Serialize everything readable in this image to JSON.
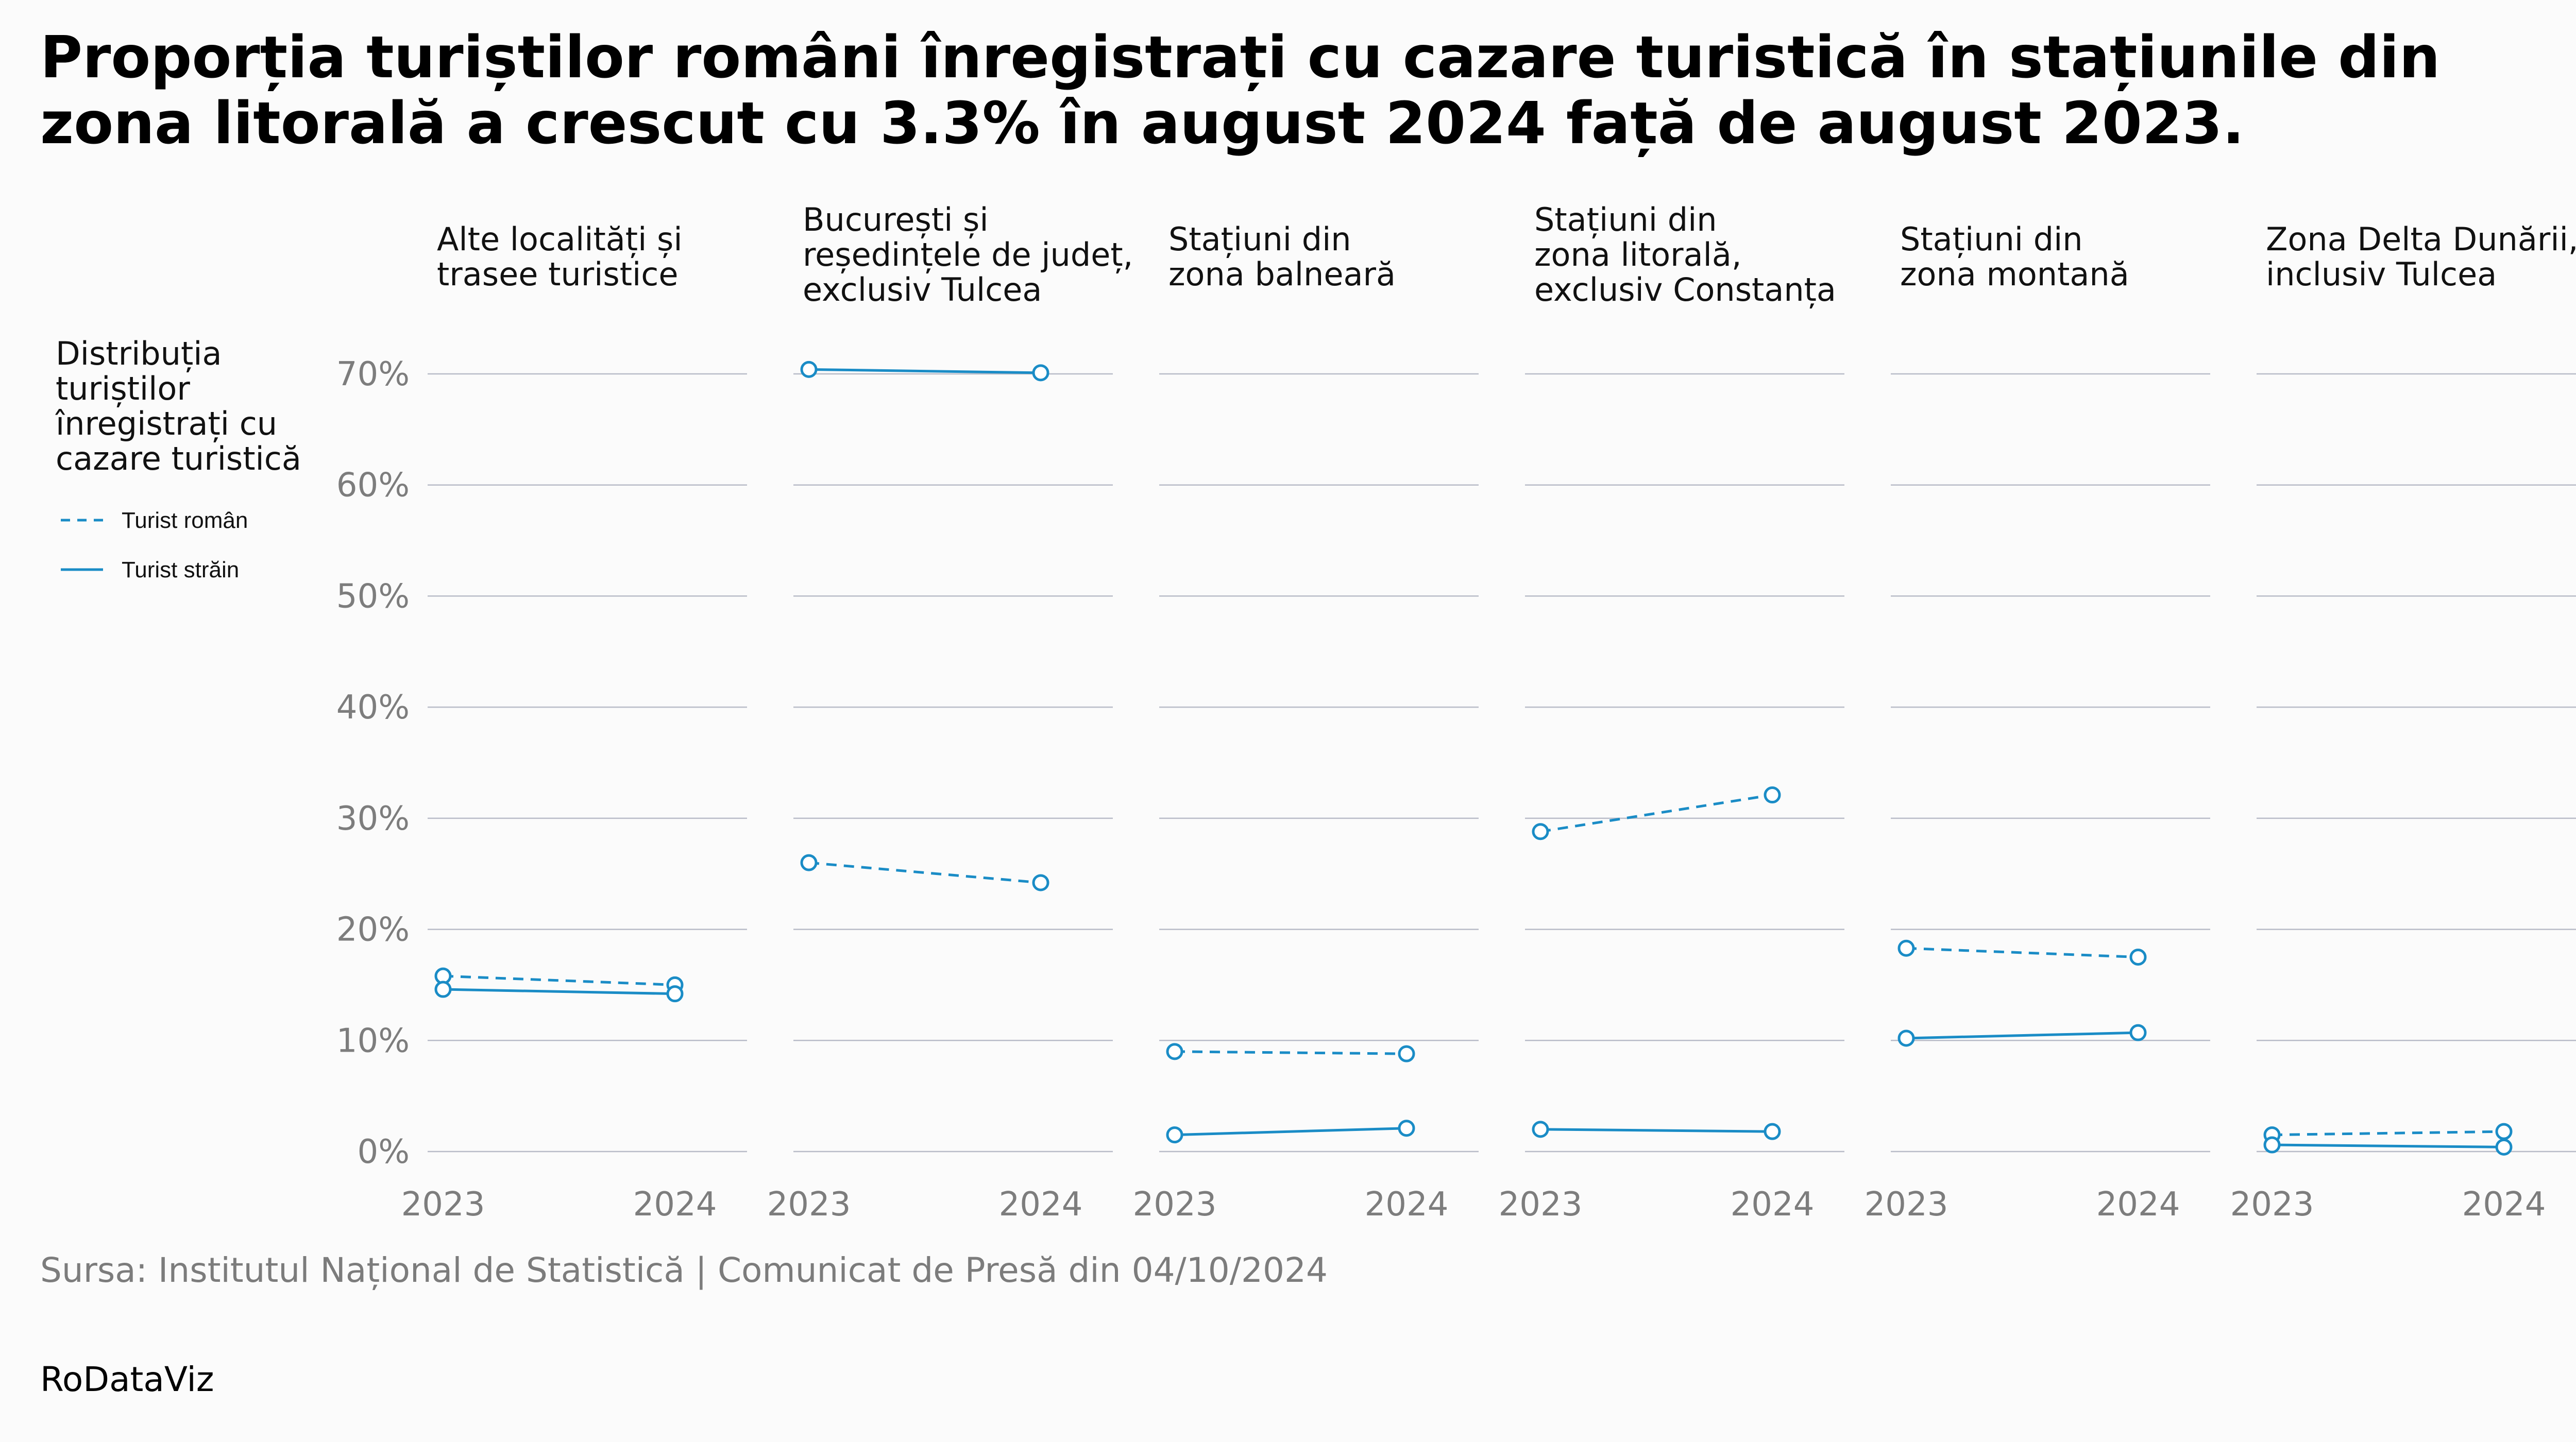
{
  "title": "Proporția turiștilor români înregistrați cu cazare turistică în stațiunile din zona litorală a crescut cu 3.3% în august 2024 față de august 2023.",
  "source": "Sursa: Institutul Național de Statistică | Comunicat de Presă din 04/10/2024",
  "brand": "RoDataViz",
  "legend": {
    "title_lines": [
      "Distribuția",
      "turiștilor",
      "înregistrați cu",
      "cazare turistică"
    ]
  },
  "colors": {
    "series": "#1a8cc6",
    "grid": "#b9bcc8",
    "tick": "#7d7d7d"
  },
  "chart_data": {
    "type": "line",
    "x": [
      "2023",
      "2024"
    ],
    "y_ticks": [
      "0%",
      "10%",
      "20%",
      "30%",
      "40%",
      "50%",
      "60%",
      "70%"
    ],
    "ylim": [
      0,
      70
    ],
    "series_styles": [
      {
        "name": "Turist român",
        "dash": "dashed"
      },
      {
        "name": "Turist străin",
        "dash": "solid"
      }
    ],
    "panels": [
      {
        "title_lines": [
          "Alte localități și",
          "trasee turistice"
        ],
        "series": [
          {
            "name": "Turist român",
            "values": [
              15.8,
              15.0
            ]
          },
          {
            "name": "Turist străin",
            "values": [
              14.6,
              14.2
            ]
          }
        ]
      },
      {
        "title_lines": [
          "București și",
          "reședințele de județ,",
          "exclusiv Tulcea"
        ],
        "series": [
          {
            "name": "Turist român",
            "values": [
              26.0,
              24.2
            ]
          },
          {
            "name": "Turist străin",
            "values": [
              70.4,
              70.1
            ]
          }
        ]
      },
      {
        "title_lines": [
          "Stațiuni din",
          "zona balneară"
        ],
        "series": [
          {
            "name": "Turist român",
            "values": [
              9.0,
              8.8
            ]
          },
          {
            "name": "Turist străin",
            "values": [
              1.5,
              2.1
            ]
          }
        ]
      },
      {
        "title_lines": [
          "Stațiuni din",
          "zona litorală,",
          "exclusiv Constanța"
        ],
        "series": [
          {
            "name": "Turist român",
            "values": [
              28.8,
              32.1
            ]
          },
          {
            "name": "Turist străin",
            "values": [
              2.0,
              1.8
            ]
          }
        ]
      },
      {
        "title_lines": [
          "Stațiuni din",
          "zona montană"
        ],
        "series": [
          {
            "name": "Turist român",
            "values": [
              18.3,
              17.5
            ]
          },
          {
            "name": "Turist străin",
            "values": [
              10.2,
              10.7
            ]
          }
        ]
      },
      {
        "title_lines": [
          "Zona Delta Dunării,",
          "inclusiv Tulcea"
        ],
        "series": [
          {
            "name": "Turist român",
            "values": [
              1.5,
              1.8
            ]
          },
          {
            "name": "Turist străin",
            "values": [
              0.6,
              0.4
            ]
          }
        ]
      }
    ]
  }
}
